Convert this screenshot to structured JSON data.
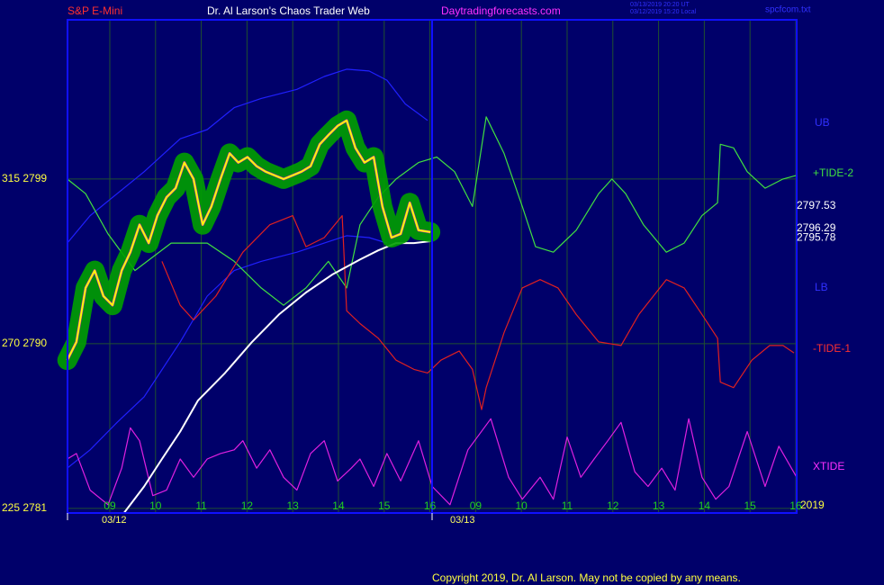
{
  "chart_data": {
    "type": "line",
    "title": "Dr. Al Larson's Chaos Trader Web",
    "instrument": "S&P E-Mini",
    "site": "Daytradingforecasts.com",
    "timestamps": [
      "03/13/2019 20:20 UT",
      "03/12/2019 15:20 Local"
    ],
    "file": "spcfcom.txt",
    "copyright": "Copyright 2019, Dr. Al Larson. May not be copied by any means.",
    "dates": [
      "03/12",
      "03/13"
    ],
    "year": "2019",
    "grid": true,
    "xlim": [
      -0.925,
      15.02
    ],
    "xticks": [
      {
        "value": 0,
        "label": "09"
      },
      {
        "value": 1,
        "label": "10"
      },
      {
        "value": 2,
        "label": "11"
      },
      {
        "value": 3,
        "label": "12"
      },
      {
        "value": 4,
        "label": "13"
      },
      {
        "value": 5,
        "label": "14"
      },
      {
        "value": 6,
        "label": "15"
      },
      {
        "value": 7,
        "label": "16"
      },
      {
        "value": 8,
        "label": "09"
      },
      {
        "value": 9,
        "label": "10"
      },
      {
        "value": 10,
        "label": "11"
      },
      {
        "value": 11,
        "label": "12"
      },
      {
        "value": 12,
        "label": "13"
      },
      {
        "value": 13,
        "label": "14"
      },
      {
        "value": 14,
        "label": "15"
      },
      {
        "value": 15,
        "label": "16"
      }
    ],
    "ylim": [
      2780.75,
      2807.7
    ],
    "yticks": [
      {
        "value": 2799,
        "label": "315  2799"
      },
      {
        "value": 2790,
        "label": "270  2790"
      },
      {
        "value": 2781,
        "label": "225  2781"
      }
    ],
    "annotations": [
      2797.53,
      2796.29,
      2795.78
    ],
    "series": [
      {
        "name": "UB",
        "color": "#2020ff",
        "x": [
          -0.93,
          -0.43,
          0.16,
          0.75,
          1.54,
          2.13,
          2.72,
          3.31,
          4.09,
          4.69,
          5.18,
          5.67,
          6.06,
          6.46,
          6.95
        ],
        "values": [
          2795.5,
          2797.0,
          2798.2,
          2799.4,
          2801.2,
          2801.7,
          2802.9,
          2803.4,
          2803.9,
          2804.6,
          2805.0,
          2804.9,
          2804.4,
          2803.1,
          2802.2
        ]
      },
      {
        "name": "LB",
        "color": "#2020ff",
        "x": [
          -0.93,
          -0.43,
          0.16,
          0.75,
          1.54,
          2.13,
          2.72,
          3.31,
          4.09,
          4.69,
          5.18,
          5.67,
          6.06
        ],
        "values": [
          2783.2,
          2784.2,
          2785.7,
          2787.1,
          2790.1,
          2792.6,
          2794.0,
          2794.5,
          2795.0,
          2795.5,
          2795.9,
          2795.8,
          2795.5
        ]
      },
      {
        "name": "+TIDE-2",
        "color": "#40e040",
        "x": [
          -0.93,
          -0.53,
          -0.04,
          0.55,
          1.34,
          2.13,
          2.72,
          3.31,
          3.8,
          4.29,
          4.78,
          5.18,
          5.47,
          5.87,
          6.26,
          6.75,
          7.15,
          7.54,
          7.93,
          8.23,
          8.62,
          9.02,
          9.31,
          9.7,
          10.2,
          10.69,
          10.98,
          11.28,
          11.67,
          12.17,
          12.56,
          12.95,
          13.29,
          13.35,
          13.64,
          13.94,
          14.33,
          14.72,
          15.02
        ],
        "values": [
          2799.0,
          2798.2,
          2796.0,
          2794.0,
          2795.5,
          2795.5,
          2794.5,
          2793.05,
          2792.1,
          2793.05,
          2794.5,
          2793.05,
          2796.5,
          2798.0,
          2799.0,
          2799.9,
          2800.2,
          2799.4,
          2797.5,
          2802.4,
          2800.4,
          2797.5,
          2795.3,
          2795.0,
          2796.2,
          2798.2,
          2799.0,
          2798.2,
          2796.5,
          2795.0,
          2795.5,
          2797.0,
          2797.7,
          2800.9,
          2800.7,
          2799.4,
          2798.5,
          2799.0,
          2799.2
        ]
      },
      {
        "name": "-TIDE-1",
        "color": "#e02020",
        "x": [
          1.14,
          1.54,
          1.83,
          2.32,
          2.91,
          3.5,
          4.0,
          4.29,
          4.69,
          5.08,
          5.18,
          5.47,
          5.87,
          6.26,
          6.65,
          6.95,
          7.24,
          7.64,
          7.93,
          8.13,
          8.23,
          8.62,
          9.02,
          9.41,
          9.8,
          10.2,
          10.69,
          11.18,
          11.57,
          12.17,
          12.56,
          12.95,
          13.29,
          13.35,
          13.64,
          14.04,
          14.43,
          14.72,
          14.96
        ],
        "values": [
          2794.5,
          2792.1,
          2791.3,
          2792.6,
          2795.0,
          2796.5,
          2797.0,
          2795.3,
          2795.8,
          2797.0,
          2791.8,
          2791.1,
          2790.3,
          2789.1,
          2788.6,
          2788.4,
          2789.1,
          2789.6,
          2788.6,
          2786.4,
          2787.6,
          2790.6,
          2793.05,
          2793.5,
          2793.05,
          2791.6,
          2790.1,
          2789.9,
          2791.6,
          2793.5,
          2793.05,
          2791.6,
          2790.3,
          2787.9,
          2787.6,
          2789.1,
          2789.9,
          2789.9,
          2789.5
        ]
      },
      {
        "name": "XTIDE",
        "color": "#e020e0",
        "x": [
          -0.93,
          -0.73,
          -0.43,
          -0.04,
          0.26,
          0.45,
          0.65,
          0.94,
          1.24,
          1.54,
          1.83,
          2.13,
          2.42,
          2.72,
          2.91,
          3.21,
          3.5,
          3.8,
          4.09,
          4.39,
          4.69,
          4.98,
          5.28,
          5.47,
          5.77,
          6.06,
          6.36,
          6.75,
          7.05,
          7.44,
          7.83,
          8.33,
          8.72,
          9.02,
          9.41,
          9.7,
          10.0,
          10.3,
          10.59,
          10.89,
          11.18,
          11.48,
          11.77,
          12.07,
          12.36,
          12.66,
          12.95,
          13.25,
          13.54,
          13.94,
          14.33,
          14.63,
          15.02
        ],
        "values": [
          2783.7,
          2784.0,
          2782.0,
          2781.2,
          2783.2,
          2785.4,
          2784.7,
          2781.7,
          2782.0,
          2783.7,
          2782.7,
          2783.7,
          2784.0,
          2784.2,
          2784.7,
          2783.2,
          2784.2,
          2782.7,
          2782.0,
          2784.0,
          2784.7,
          2782.5,
          2783.2,
          2783.7,
          2782.2,
          2784.0,
          2782.5,
          2784.7,
          2782.2,
          2781.2,
          2784.2,
          2785.9,
          2782.7,
          2781.5,
          2782.7,
          2781.5,
          2784.9,
          2782.7,
          2783.7,
          2784.7,
          2785.7,
          2783.0,
          2782.2,
          2783.2,
          2782.0,
          2785.9,
          2782.7,
          2781.5,
          2782.2,
          2785.2,
          2782.2,
          2784.4,
          2782.7
        ]
      },
      {
        "color": "#ffffff",
        "x": [
          0.31,
          0.75,
          1.14,
          1.54,
          1.93,
          2.52,
          3.11,
          3.7,
          4.29,
          4.88,
          5.47,
          5.87,
          6.26,
          6.65,
          7.01
        ],
        "values": [
          2780.75,
          2782.2,
          2783.7,
          2785.2,
          2786.9,
          2788.4,
          2790.1,
          2791.6,
          2792.8,
          2793.8,
          2794.6,
          2795.1,
          2795.5,
          2795.5,
          2795.6
        ]
      },
      {
        "color": "#30e0f0",
        "halo_color": "#00a000",
        "x": [
          -0.93,
          -0.73,
          -0.53,
          -0.33,
          -0.14,
          0.06,
          0.26,
          0.45,
          0.65,
          0.85,
          1.04,
          1.24,
          1.44,
          1.63,
          1.83,
          2.03,
          2.22,
          2.42,
          2.62,
          2.81,
          3.01,
          3.21,
          3.41,
          3.6,
          3.8,
          4.0,
          4.19,
          4.39,
          4.59,
          4.78,
          4.98,
          5.18,
          5.37,
          5.57,
          5.77,
          5.96,
          6.16,
          6.36,
          6.56,
          6.75,
          7.01
        ],
        "values": [
          2789.1,
          2790.1,
          2793.05,
          2794.0,
          2792.6,
          2792.1,
          2794.0,
          2795.0,
          2796.5,
          2795.5,
          2797.0,
          2798.0,
          2798.5,
          2799.9,
          2799.0,
          2796.5,
          2797.5,
          2799.0,
          2800.4,
          2799.9,
          2800.2,
          2799.7,
          2799.4,
          2799.2,
          2799.0,
          2799.2,
          2799.4,
          2799.7,
          2800.9,
          2801.4,
          2801.9,
          2802.2,
          2800.7,
          2799.9,
          2800.2,
          2797.5,
          2795.8,
          2796.0,
          2797.7,
          2796.2,
          2796.1
        ]
      },
      {
        "color": "#ffff00",
        "x": [
          -0.93,
          -0.73,
          -0.53,
          -0.33,
          -0.14,
          0.06,
          0.26,
          0.45,
          0.65,
          0.85,
          1.04,
          1.24,
          1.44,
          1.63,
          1.83,
          2.03,
          2.22,
          2.42,
          2.62,
          2.81,
          3.01,
          3.21,
          3.41,
          3.6,
          3.8,
          4.0,
          4.19,
          4.39,
          4.59,
          4.78,
          4.98,
          5.18,
          5.37,
          5.57,
          5.77,
          5.96,
          6.16,
          6.36,
          6.56,
          6.75,
          7.01
        ],
        "values": [
          2789.1,
          2790.1,
          2793.05,
          2794.0,
          2792.6,
          2792.1,
          2794.0,
          2795.0,
          2796.5,
          2795.5,
          2797.0,
          2798.0,
          2798.5,
          2799.9,
          2799.0,
          2796.5,
          2797.5,
          2799.0,
          2800.4,
          2799.9,
          2800.2,
          2799.7,
          2799.4,
          2799.2,
          2799.0,
          2799.2,
          2799.4,
          2799.7,
          2800.9,
          2801.4,
          2801.9,
          2802.2,
          2800.7,
          2799.9,
          2800.2,
          2797.5,
          2795.8,
          2796.0,
          2797.7,
          2796.2,
          2796.1
        ]
      }
    ]
  }
}
